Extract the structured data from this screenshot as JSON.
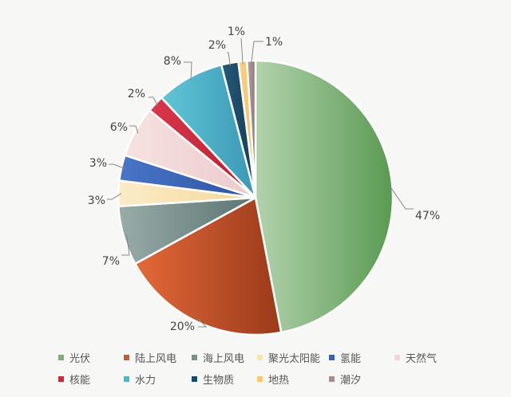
{
  "chart_data": {
    "type": "pie",
    "start": "top",
    "direction": "clockwise",
    "legend_position": "bottom",
    "slices": [
      {
        "label": "光伏",
        "value": 47,
        "data_label": "47%",
        "color": "#7bb274",
        "color_light": "#b2d2ad",
        "color_dark": "#5a9a52"
      },
      {
        "label": "陆上风电",
        "value": 20,
        "data_label": "20%",
        "color": "#cc5a2e",
        "color_light": "#e4693a",
        "color_dark": "#9a3a1a"
      },
      {
        "label": "海上风电",
        "value": 7,
        "data_label": "7%",
        "color": "#7a908d",
        "color_light": "#98aca8",
        "color_dark": "#5c7472"
      },
      {
        "label": "聚光太阳能",
        "value": 3,
        "data_label": "3%",
        "color": "#f8e2ae",
        "color_light": "#fbecc8",
        "color_dark": "#f3d898"
      },
      {
        "label": "氢能",
        "value": 3,
        "data_label": "3%",
        "color": "#3661b5",
        "color_light": "#4a76c8",
        "color_dark": "#2c52a0"
      },
      {
        "label": "天然气",
        "value": 6,
        "data_label": "6%",
        "color": "#f1d6d6",
        "color_light": "#f6e2e2",
        "color_dark": "#eccaca"
      },
      {
        "label": "核能",
        "value": 2,
        "data_label": "2%",
        "color": "#cf2a3c",
        "color_light": "#d8384a",
        "color_dark": "#b81f30"
      },
      {
        "label": "水力",
        "value": 8,
        "data_label": "8%",
        "color": "#4fb6cc",
        "color_light": "#62c6d6",
        "color_dark": "#3a98b6"
      },
      {
        "label": "生物质",
        "value": 2,
        "data_label": "2%",
        "color": "#1c4b68",
        "color_light": "#255a7a",
        "color_dark": "#163c56"
      },
      {
        "label": "地热",
        "value": 1,
        "data_label": "1%",
        "color": "#f8c872",
        "color_light": "#fbd48a",
        "color_dark": "#f0bc60"
      },
      {
        "label": "潮汐",
        "value": 1,
        "data_label": "1%",
        "color": "#a48e8e",
        "color_light": "#b8a2a2",
        "color_dark": "#8e7878"
      }
    ]
  }
}
